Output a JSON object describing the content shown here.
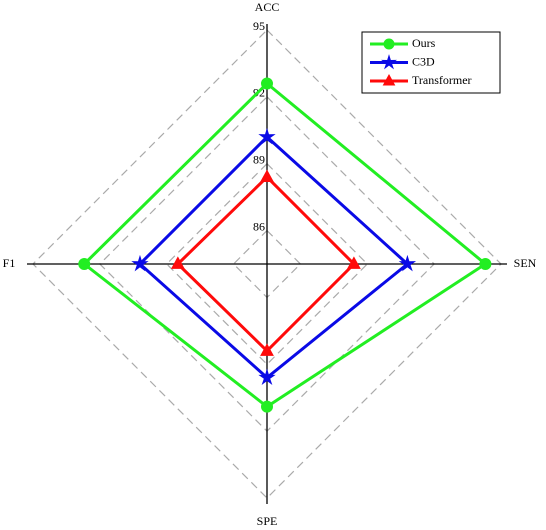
{
  "chart_data": {
    "type": "radar",
    "categories": [
      "ACC",
      "SEN",
      "SPE",
      "F1"
    ],
    "rlim": [
      84.5,
      95
    ],
    "rticks": [
      86,
      89,
      92,
      95
    ],
    "grid": true,
    "legend": "upper right",
    "series": [
      {
        "name": "Ours",
        "color": "#22ee22",
        "marker": "circle",
        "values": [
          92.6,
          94.3,
          90.9,
          92.7
        ]
      },
      {
        "name": "C3D",
        "color": "#0a0ae6",
        "marker": "star",
        "values": [
          90.2,
          90.8,
          89.6,
          90.2
        ]
      },
      {
        "name": "Transformer",
        "color": "#ff0a0a",
        "marker": "triangle",
        "values": [
          88.4,
          88.4,
          88.4,
          88.5
        ]
      }
    ]
  }
}
